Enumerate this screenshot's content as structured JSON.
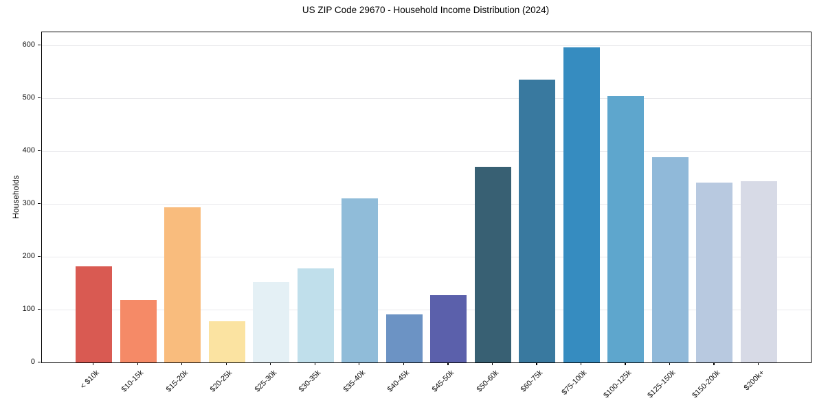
{
  "chart_data": {
    "type": "bar",
    "title": "US ZIP Code 29670 - Household Income Distribution (2024)",
    "xlabel": "",
    "ylabel": "Households",
    "categories": [
      "< $10k",
      "$10-15k",
      "$15-20k",
      "$20-25k",
      "$25-30k",
      "$30-35k",
      "$35-40k",
      "$40-45k",
      "$45-50k",
      "$50-60k",
      "$60-75k",
      "$75-100k",
      "$100-125k",
      "$125-150k",
      "$150-200k",
      "$200k+"
    ],
    "values": [
      182,
      118,
      294,
      78,
      152,
      178,
      310,
      91,
      127,
      370,
      536,
      597,
      504,
      388,
      340,
      343
    ],
    "bar_colors": [
      "#d95a52",
      "#f58a67",
      "#f9bc7d",
      "#fbe3a1",
      "#e4f0f5",
      "#c0dfeb",
      "#90bcd9",
      "#6c93c4",
      "#5b60ab",
      "#386073",
      "#39799f",
      "#368cc0",
      "#5ea6cd",
      "#90b9d9",
      "#b8c9e0",
      "#d7dae6"
    ],
    "yticks": [
      0,
      100,
      200,
      300,
      400,
      500,
      600
    ],
    "ylim": [
      0,
      625
    ],
    "grid": "horizontal",
    "gridline_color": "#e9e9ec",
    "spine_color": "#000000",
    "background": "#ffffff",
    "legend": "none"
  }
}
